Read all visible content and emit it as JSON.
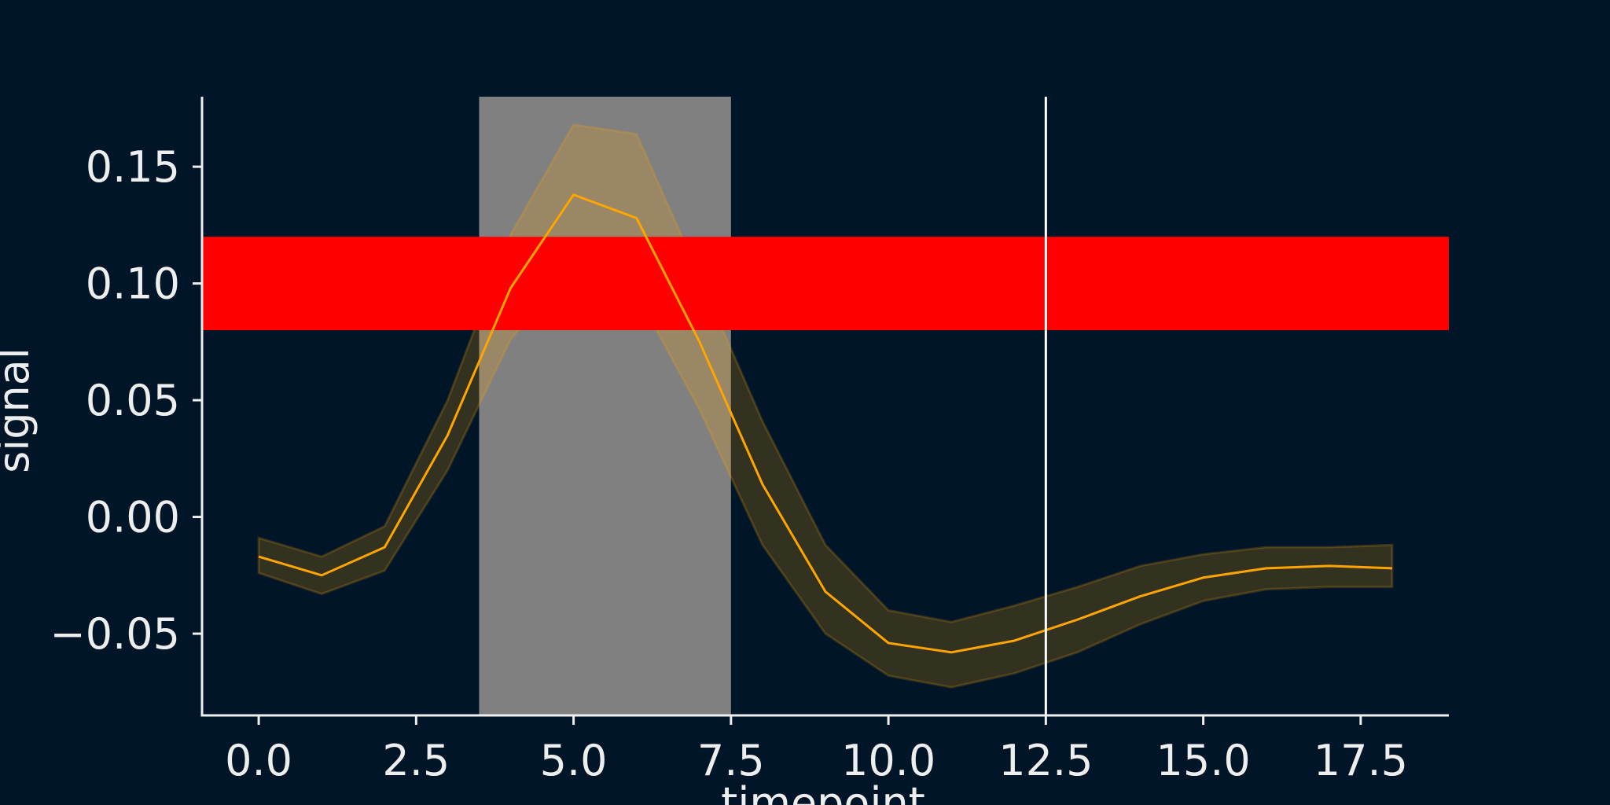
{
  "chart_data": {
    "type": "line",
    "title": "",
    "xlabel": "timepoint",
    "ylabel": "signal",
    "xlim": [
      -0.9,
      18.9
    ],
    "ylim": [
      -0.085,
      0.18
    ],
    "x_ticks": [
      0.0,
      2.5,
      5.0,
      7.5,
      10.0,
      12.5,
      15.0,
      17.5
    ],
    "x_tick_labels": [
      "0.0",
      "2.5",
      "5.0",
      "7.5",
      "10.0",
      "12.5",
      "15.0",
      "17.5"
    ],
    "y_ticks": [
      -0.05,
      0.0,
      0.05,
      0.1,
      0.15
    ],
    "y_tick_labels": [
      "−0.05",
      "0.00",
      "0.05",
      "0.10",
      "0.15"
    ],
    "grid": false,
    "series": [
      {
        "color": "#FFA500",
        "band_color": "#3C3A22",
        "x": [
          0,
          1,
          2,
          3,
          4,
          5,
          6,
          7,
          8,
          9,
          10,
          11,
          12,
          13,
          14,
          15,
          16,
          17,
          18
        ],
        "y": [
          -0.017,
          -0.025,
          -0.013,
          0.035,
          0.098,
          0.138,
          0.128,
          0.075,
          0.014,
          -0.032,
          -0.054,
          -0.058,
          -0.053,
          -0.044,
          -0.034,
          -0.026,
          -0.022,
          -0.021,
          -0.022
        ],
        "ci_low": [
          -0.024,
          -0.033,
          -0.023,
          0.02,
          0.076,
          0.108,
          0.096,
          0.046,
          -0.012,
          -0.05,
          -0.068,
          -0.073,
          -0.067,
          -0.058,
          -0.046,
          -0.036,
          -0.031,
          -0.03,
          -0.03
        ],
        "ci_high": [
          -0.009,
          -0.017,
          -0.004,
          0.05,
          0.121,
          0.168,
          0.164,
          0.103,
          0.041,
          -0.012,
          -0.04,
          -0.045,
          -0.038,
          -0.03,
          -0.021,
          -0.016,
          -0.013,
          -0.013,
          -0.012
        ]
      }
    ],
    "annotations": {
      "vertical_span": {
        "x0": 3.5,
        "x1": 7.5,
        "color": "#808080"
      },
      "horizontal_band": {
        "y0": 0.08,
        "y1": 0.12,
        "color": "#FF0000"
      },
      "vertical_line": {
        "x": 12.5,
        "color": "#FFFFFF"
      }
    },
    "colors": {
      "background": "#001628",
      "axis": "#EEEEEE"
    }
  }
}
